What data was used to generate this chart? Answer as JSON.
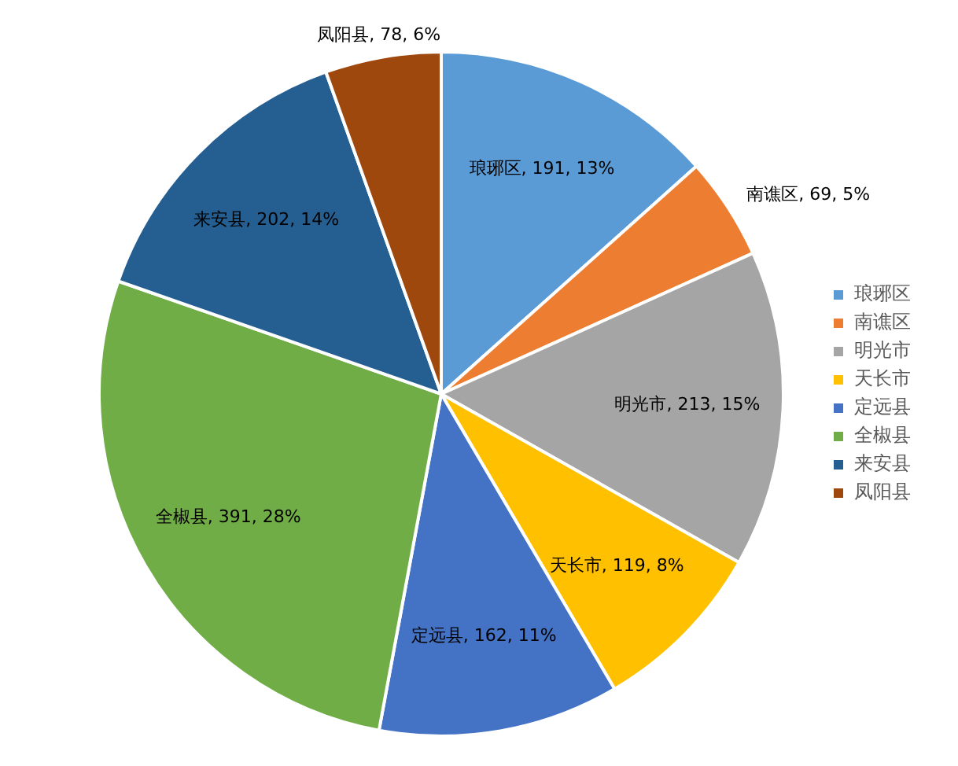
{
  "chart_data": {
    "type": "pie",
    "categories": [
      "琅琊区",
      "南谯区",
      "明光市",
      "天长市",
      "定远县",
      "全椒县",
      "来安县",
      "凤阳县"
    ],
    "values": [
      191,
      69,
      213,
      119,
      162,
      391,
      202,
      78
    ],
    "colors": [
      "#5b9bd5",
      "#ed7d31",
      "#a5a5a5",
      "#ffc000",
      "#4472c4",
      "#70ad47",
      "#255e91",
      "#9e480e"
    ],
    "value_labels": [
      "琅琊区, 191, 13%",
      "南谯区, 69, 5%",
      "明光市, 213, 15%",
      "天长市, 119, 8%",
      "定远县, 162, 11%",
      "全椒县, 391, 28%",
      "来安县, 202, 14%",
      "凤阳县, 78, 6%"
    ],
    "legend": "right"
  }
}
